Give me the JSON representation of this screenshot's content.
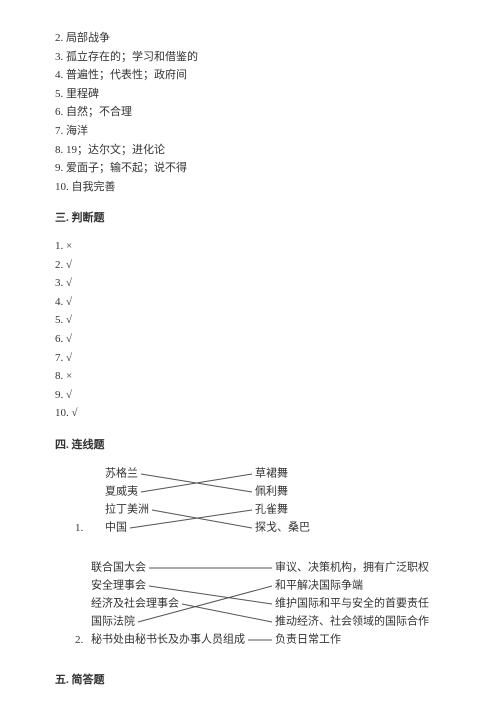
{
  "answers": {
    "items": [
      "2. 局部战争",
      "3. 孤立存在的；学习和借鉴的",
      "4. 普遍性；代表性；政府间",
      "5. 里程碑",
      "6. 自然；不合理",
      "7. 海洋",
      "8. 19；达尔文；进化论",
      "9. 爱面子；输不起；说不得",
      "10. 自我完善"
    ]
  },
  "section3": {
    "title": "三. 判断题"
  },
  "truefalse": {
    "items": [
      "1. ×",
      "2. √",
      "3. √",
      "4. √",
      "5. √",
      "6. √",
      "7. √",
      "8. ×",
      "9. √",
      "10. √"
    ]
  },
  "section4": {
    "title": "四. 连线题"
  },
  "matching1": {
    "prefix": "1.",
    "left": [
      "苏格兰",
      "夏威夷",
      "拉丁美洲",
      "中国"
    ],
    "right": [
      "草裙舞",
      "佩利舞",
      "孔雀舞",
      "探戈、桑巴"
    ],
    "lines": [
      {
        "from": 0,
        "to": 0,
        "cross": true,
        "to_cross": 1
      },
      {
        "from": 1,
        "to": 1,
        "cross": true,
        "to_cross": 0
      },
      {
        "from": 2,
        "to": 3
      },
      {
        "from": 3,
        "to": 2
      }
    ],
    "line_color": "#555555",
    "text_color": "#333333",
    "fontsize": 11
  },
  "matching2": {
    "prefix": "2.",
    "left": [
      "联合国大会",
      "安全理事会",
      "经济及社会理事会",
      "国际法院",
      "秘书处由秘书长及办事人员组成"
    ],
    "right": [
      "审议、决策机构，拥有广泛职权",
      "和平解决国际争端",
      "维护国际和平与安全的首要责任",
      "推动经济、社会领域的国际合作",
      "负责日常工作"
    ],
    "lines": [
      {
        "from": 0,
        "to": 0
      },
      {
        "from": 1,
        "to": 2
      },
      {
        "from": 2,
        "to": 3
      },
      {
        "from": 3,
        "to": 1
      },
      {
        "from": 4,
        "to": 4
      }
    ],
    "line_color": "#555555",
    "text_color": "#333333",
    "fontsize": 11
  },
  "section5": {
    "title": "五. 简答题"
  }
}
